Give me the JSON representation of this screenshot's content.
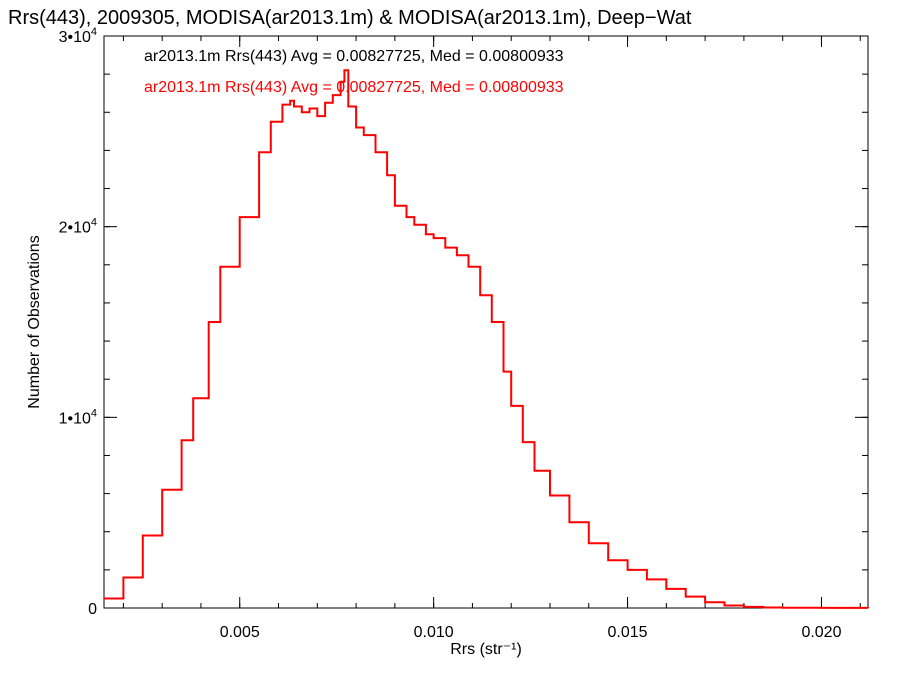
{
  "chart_data": {
    "type": "line",
    "title": "Rrs(443), 2009305, MODISA(ar2013.1m) & MODISA(ar2013.1m), Deep−Wat",
    "xlabel": "Rrs (str⁻¹)",
    "ylabel": "Number of Observations",
    "xlim": [
      0.0015,
      0.0212
    ],
    "ylim": [
      0,
      30000
    ],
    "x_ticks": [
      {
        "value": 0.005,
        "label": "0.005"
      },
      {
        "value": 0.01,
        "label": "0.010"
      },
      {
        "value": 0.015,
        "label": "0.015"
      },
      {
        "value": 0.02,
        "label": "0.020"
      }
    ],
    "y_ticks": [
      {
        "value": 0,
        "base": "0",
        "exp": ""
      },
      {
        "value": 10000,
        "base": "1•10",
        "exp": "4"
      },
      {
        "value": 20000,
        "base": "2•10",
        "exp": "4"
      },
      {
        "value": 30000,
        "base": "3•10",
        "exp": "4"
      }
    ],
    "grid": false,
    "legend": [
      {
        "text": "ar2013.1m Rrs(443) Avg = 0.00827725, Med = 0.00800933",
        "color": "#000000"
      },
      {
        "text": "ar2013.1m Rrs(443) Avg = 0.00827725, Med = 0.00800933",
        "color": "#ff0000"
      }
    ],
    "series": [
      {
        "color": "#ff0000",
        "step": true,
        "x": [
          0.0015,
          0.002,
          0.0025,
          0.003,
          0.0035,
          0.0038,
          0.0042,
          0.0045,
          0.005,
          0.0055,
          0.0058,
          0.0061,
          0.0063,
          0.0064,
          0.0066,
          0.0068,
          0.007,
          0.0072,
          0.0074,
          0.0076,
          0.0077,
          0.0078,
          0.008,
          0.0082,
          0.0085,
          0.0088,
          0.009,
          0.0093,
          0.0095,
          0.0098,
          0.01,
          0.0103,
          0.0106,
          0.0109,
          0.0112,
          0.0115,
          0.0118,
          0.012,
          0.0123,
          0.0126,
          0.013,
          0.0135,
          0.014,
          0.0145,
          0.015,
          0.0155,
          0.016,
          0.0165,
          0.017,
          0.0175,
          0.018,
          0.0185,
          0.019,
          0.02,
          0.0212
        ],
        "y": [
          500,
          1600,
          3800,
          6200,
          8800,
          11000,
          15000,
          17900,
          20500,
          23900,
          25500,
          26400,
          26600,
          26300,
          26000,
          26200,
          25800,
          26500,
          26900,
          27600,
          28200,
          26300,
          25200,
          24800,
          23900,
          22700,
          21100,
          20500,
          20100,
          19600,
          19400,
          18900,
          18500,
          17900,
          16400,
          15000,
          12400,
          10600,
          8700,
          7200,
          5900,
          4500,
          3400,
          2500,
          2000,
          1500,
          1000,
          600,
          300,
          130,
          60,
          25,
          10,
          5,
          0
        ]
      }
    ]
  }
}
